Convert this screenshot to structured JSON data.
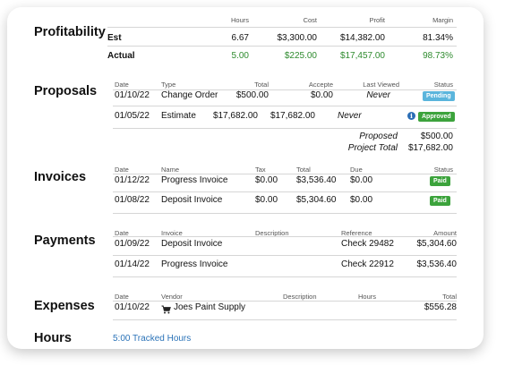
{
  "profitability": {
    "title": "Profitability",
    "headers": {
      "hours": "Hours",
      "cost": "Cost",
      "profit": "Profit",
      "margin": "Margin"
    },
    "est": {
      "label": "Est",
      "hours": "6.67",
      "cost": "$3,300.00",
      "profit": "$14,382.00",
      "margin": "81.34%"
    },
    "actual": {
      "label": "Actual",
      "hours": "5.00",
      "cost": "$225.00",
      "profit": "$17,457.00",
      "margin": "98.73%"
    }
  },
  "proposals": {
    "title": "Proposals",
    "headers": {
      "date": "Date",
      "type": "Type",
      "total": "Total",
      "accepted": "Accepte",
      "last_viewed": "Last Viewed",
      "status": "Status"
    },
    "rows": [
      {
        "date": "01/10/22",
        "type": "Change Order",
        "total": "$500.00",
        "accepted": "$0.00",
        "last_viewed": "Never",
        "status": "Pending"
      },
      {
        "date": "01/05/22",
        "type": "Estimate",
        "total": "$17,682.00",
        "accepted": "$17,682.00",
        "last_viewed": "Never",
        "status": "Approved"
      }
    ],
    "summary": {
      "proposed_label": "Proposed",
      "proposed_value": "$500.00",
      "project_total_label": "Project Total",
      "project_total_value": "$17,682.00"
    }
  },
  "invoices": {
    "title": "Invoices",
    "headers": {
      "date": "Date",
      "name": "Name",
      "tax": "Tax",
      "total": "Total",
      "due": "Due",
      "status": "Status"
    },
    "rows": [
      {
        "date": "01/12/22",
        "name": "Progress Invoice",
        "tax": "$0.00",
        "total": "$3,536.40",
        "due": "$0.00",
        "status": "Paid"
      },
      {
        "date": "01/08/22",
        "name": "Deposit Invoice",
        "tax": "$0.00",
        "total": "$5,304.60",
        "due": "$0.00",
        "status": "Paid"
      }
    ]
  },
  "payments": {
    "title": "Payments",
    "headers": {
      "date": "Date",
      "invoice": "Invoice",
      "description": "Description",
      "reference": "Reference",
      "amount": "Amount"
    },
    "rows": [
      {
        "date": "01/09/22",
        "invoice": "Deposit Invoice",
        "reference": "Check 29482",
        "amount": "$5,304.60"
      },
      {
        "date": "01/14/22",
        "invoice": "Progress Invoice",
        "reference": "Check 22912",
        "amount": "$3,536.40"
      }
    ]
  },
  "expenses": {
    "title": "Expenses",
    "headers": {
      "date": "Date",
      "vendor": "Vendor",
      "description": "Description",
      "hours": "Hours",
      "total": "Total"
    },
    "rows": [
      {
        "date": "01/10/22",
        "vendor": "Joes Paint Supply",
        "vendor_icon": "cart-icon",
        "total": "$556.28"
      }
    ]
  },
  "hours": {
    "title": "Hours",
    "tracked_link": "5:00 Tracked Hours"
  },
  "colors": {
    "green": "#2e8b2e",
    "pending": "#5bb5dc",
    "approved": "#3ca33c",
    "link": "#2b73b8"
  }
}
